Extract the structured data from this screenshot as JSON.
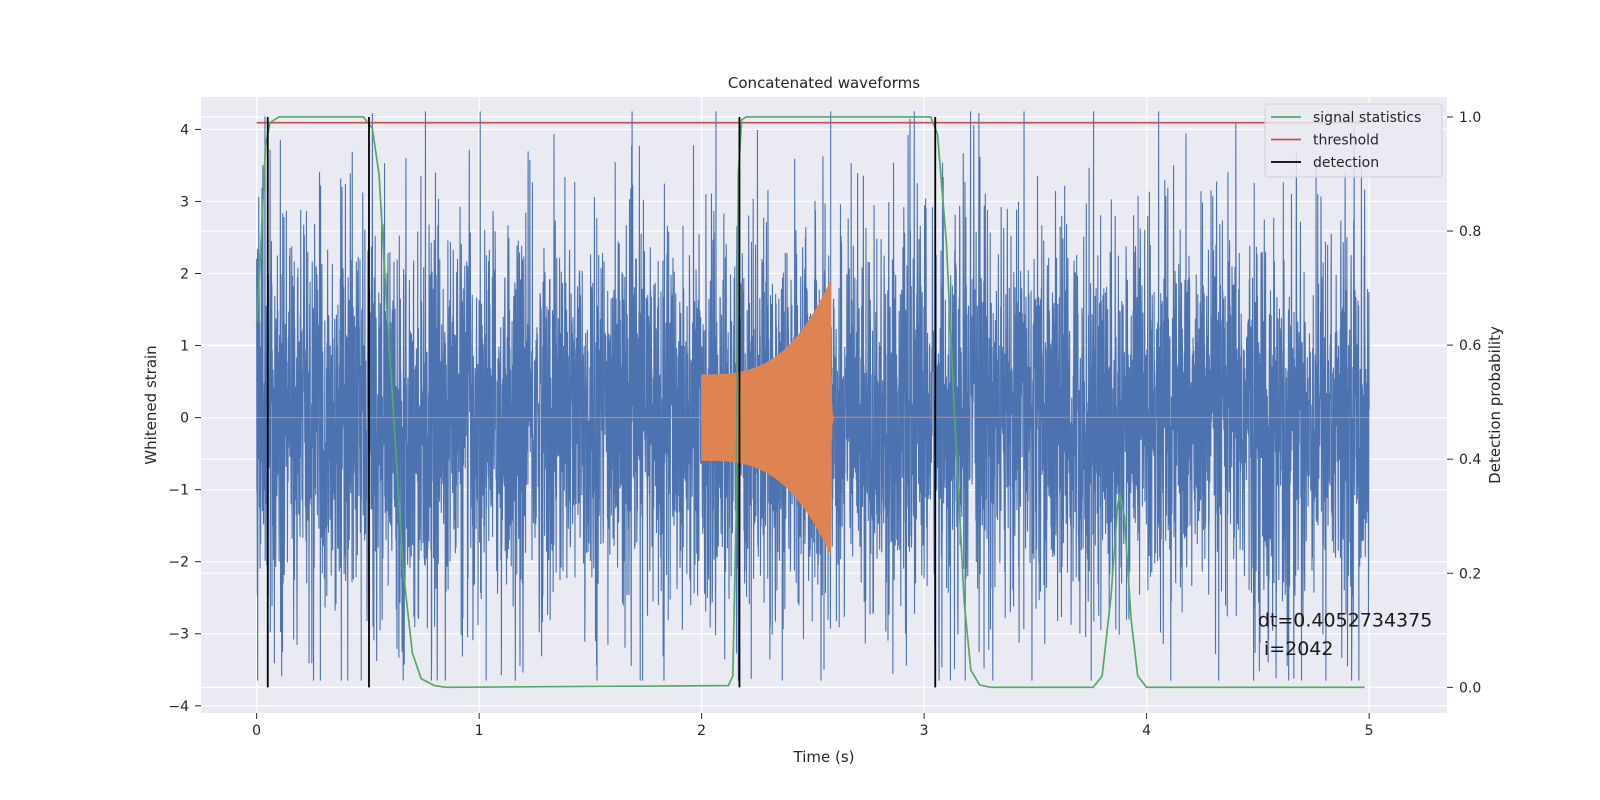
{
  "chart_data": {
    "type": "line",
    "title": "Concatenated waveforms",
    "xlabel": "Time (s)",
    "ylabel_left": "Whitened strain",
    "ylabel_right": "Detection probability",
    "xlim": [
      -0.25,
      5.35
    ],
    "ylim_left": [
      -4.1,
      4.45
    ],
    "ylim_right": [
      -0.045,
      1.035
    ],
    "x_ticks": [
      0,
      1,
      2,
      3,
      4,
      5
    ],
    "y_ticks_left": [
      -4,
      -3,
      -2,
      -1,
      0,
      1,
      2,
      3,
      4
    ],
    "y_ticks_right": [
      0.0,
      0.2,
      0.4,
      0.6,
      0.8,
      1.0
    ],
    "x_tick_labels": [
      "0",
      "1",
      "2",
      "3",
      "4",
      "5"
    ],
    "y_tick_labels_left": [
      "−4",
      "−3",
      "−2",
      "−1",
      "0",
      "1",
      "2",
      "3",
      "4"
    ],
    "y_tick_labels_right": [
      "0.0",
      "0.2",
      "0.4",
      "0.6",
      "0.8",
      "1.0"
    ],
    "grid": true,
    "legend_position": "top-right",
    "series": [
      {
        "kind": "noise",
        "color": "#4c72b0",
        "x_range": [
          0,
          5
        ],
        "typical_amplitude": 1.3,
        "peak_min": -3.65,
        "peak_max": 4.25
      },
      {
        "kind": "chirp",
        "color": "#dd8452",
        "start_time": 2.0,
        "merger_time": 2.58,
        "amplitude_start": 0.6,
        "amplitude_peak": 1.9,
        "baseline": 0.0
      },
      {
        "name": "signal statistics",
        "axis": "right",
        "color": "#55a868",
        "points": [
          [
            0.0,
            0.64
          ],
          [
            0.02,
            0.78
          ],
          [
            0.04,
            0.95
          ],
          [
            0.06,
            0.99
          ],
          [
            0.1,
            1.0
          ],
          [
            0.48,
            1.0
          ],
          [
            0.52,
            0.98
          ],
          [
            0.55,
            0.9
          ],
          [
            0.58,
            0.7
          ],
          [
            0.62,
            0.45
          ],
          [
            0.66,
            0.2
          ],
          [
            0.7,
            0.06
          ],
          [
            0.74,
            0.015
          ],
          [
            0.8,
            0.003
          ],
          [
            0.85,
            0.0
          ],
          [
            2.12,
            0.003
          ],
          [
            2.14,
            0.02
          ],
          [
            2.155,
            0.3
          ],
          [
            2.165,
            0.9
          ],
          [
            2.18,
            0.995
          ],
          [
            2.2,
            1.0
          ],
          [
            3.03,
            1.0
          ],
          [
            3.06,
            0.97
          ],
          [
            3.1,
            0.78
          ],
          [
            3.14,
            0.45
          ],
          [
            3.18,
            0.15
          ],
          [
            3.21,
            0.03
          ],
          [
            3.25,
            0.004
          ],
          [
            3.3,
            0.0
          ],
          [
            3.76,
            0.0
          ],
          [
            3.8,
            0.02
          ],
          [
            3.84,
            0.16
          ],
          [
            3.87,
            0.32
          ],
          [
            3.88,
            0.34
          ],
          [
            3.9,
            0.3
          ],
          [
            3.93,
            0.12
          ],
          [
            3.96,
            0.02
          ],
          [
            4.0,
            0.0
          ],
          [
            4.98,
            0.0
          ]
        ]
      },
      {
        "name": "threshold",
        "axis": "right",
        "color": "#c44e52",
        "value": 0.99,
        "x_range": [
          0,
          5
        ]
      },
      {
        "name": "detection",
        "axis": "right",
        "color": "#000000",
        "x_values": [
          0.05,
          0.505,
          2.17,
          3.05
        ],
        "y_range": [
          0,
          1
        ]
      }
    ],
    "legend": [
      "signal statistics",
      "threshold",
      "detection"
    ],
    "annotations": [
      {
        "text": "dt=0.4052734375",
        "x": 4.5,
        "y": -2.8
      },
      {
        "text": " i=2042",
        "x": 4.5,
        "y": -3.2
      }
    ]
  }
}
